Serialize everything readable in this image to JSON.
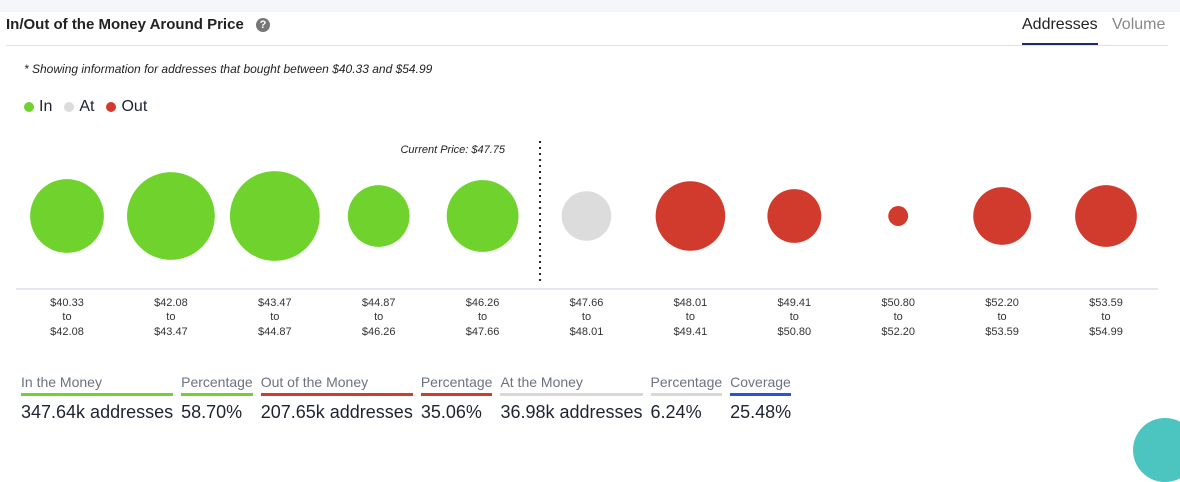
{
  "header": {
    "title": "In/Out of the Money Around Price",
    "help_icon": "question-circle-icon",
    "tabs": [
      {
        "label": "Addresses",
        "active": true
      },
      {
        "label": "Volume",
        "active": false
      }
    ]
  },
  "note": "* Showing information for addresses that bought between $40.33 and $54.99",
  "legend": [
    {
      "label": "In",
      "color": "#6fd22d"
    },
    {
      "label": "At",
      "color": "#dcdcdc"
    },
    {
      "label": "Out",
      "color": "#d13b2d"
    }
  ],
  "chart_data": {
    "type": "bubble",
    "current_price_label": "Current Price: $47.75",
    "current_price": 47.75,
    "bins": [
      {
        "from": "$40.33",
        "to": "$42.08",
        "status": "in",
        "relative_size": 1.37
      },
      {
        "from": "$42.08",
        "to": "$43.47",
        "status": "in",
        "relative_size": 1.94
      },
      {
        "from": "$43.47",
        "to": "$44.87",
        "status": "in",
        "relative_size": 2.03
      },
      {
        "from": "$44.87",
        "to": "$46.26",
        "status": "in",
        "relative_size": 0.96
      },
      {
        "from": "$46.26",
        "to": "$47.66",
        "status": "in",
        "relative_size": 1.3
      },
      {
        "from": "$47.66",
        "to": "$48.01",
        "status": "at",
        "relative_size": 0.62
      },
      {
        "from": "$48.01",
        "to": "$49.41",
        "status": "out",
        "relative_size": 1.22
      },
      {
        "from": "$49.41",
        "to": "$50.80",
        "status": "out",
        "relative_size": 0.73
      },
      {
        "from": "$50.80",
        "to": "$52.20",
        "status": "out",
        "relative_size": 0.1
      },
      {
        "from": "$52.20",
        "to": "$53.59",
        "status": "out",
        "relative_size": 0.84
      },
      {
        "from": "$53.59",
        "to": "$54.99",
        "status": "out",
        "relative_size": 0.96
      }
    ],
    "to_word": "to"
  },
  "stats": [
    {
      "label": "In the Money",
      "value": "347.64k addresses",
      "color": "#6fd22d"
    },
    {
      "label": "Percentage",
      "value": "58.70%",
      "color": "#6fd22d"
    },
    {
      "label": "Out of the Money",
      "value": "207.65k addresses",
      "color": "#d13b2d"
    },
    {
      "label": "Percentage",
      "value": "35.06%",
      "color": "#d13b2d"
    },
    {
      "label": "At the Money",
      "value": "36.98k addresses",
      "color": "#d8d8d8"
    },
    {
      "label": "Percentage",
      "value": "6.24%",
      "color": "#d8d8d8"
    },
    {
      "label": "Coverage",
      "value": "25.48%",
      "color": "#2a52e0"
    }
  ]
}
